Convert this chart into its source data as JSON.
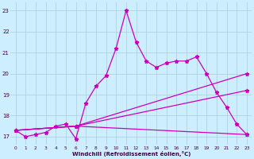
{
  "xlabel": "Windchill (Refroidissement éolien,°C)",
  "background_color": "#cceeff",
  "grid_color": "#aaccdd",
  "line_color": "#cc00bb",
  "xlim": [
    -0.5,
    23.5
  ],
  "ylim": [
    16.6,
    23.4
  ],
  "yticks": [
    17,
    18,
    19,
    20,
    21,
    22,
    23
  ],
  "xticks": [
    0,
    1,
    2,
    3,
    4,
    5,
    6,
    7,
    8,
    9,
    10,
    11,
    12,
    13,
    14,
    15,
    16,
    17,
    18,
    19,
    20,
    21,
    22,
    23
  ],
  "line1_x": [
    0,
    1,
    2,
    3,
    4,
    5,
    6,
    7,
    8,
    9,
    10,
    11,
    12,
    13,
    14,
    15,
    16,
    17,
    18,
    19,
    20,
    21,
    22,
    23
  ],
  "line1_y": [
    17.3,
    17.0,
    17.1,
    17.2,
    17.5,
    17.6,
    16.9,
    18.6,
    19.4,
    19.9,
    21.2,
    23.0,
    21.5,
    20.6,
    20.3,
    20.5,
    20.6,
    20.6,
    20.8,
    20.0,
    19.1,
    18.4,
    17.6,
    17.1
  ],
  "line2_x": [
    0,
    6,
    23
  ],
  "line2_y": [
    17.3,
    17.5,
    20.0
  ],
  "line3_x": [
    0,
    6,
    23
  ],
  "line3_y": [
    17.3,
    17.5,
    19.2
  ],
  "line4_x": [
    0,
    6,
    23
  ],
  "line4_y": [
    17.3,
    17.5,
    17.1
  ],
  "marker": "*",
  "markersize": 3.5,
  "linewidth": 0.9
}
